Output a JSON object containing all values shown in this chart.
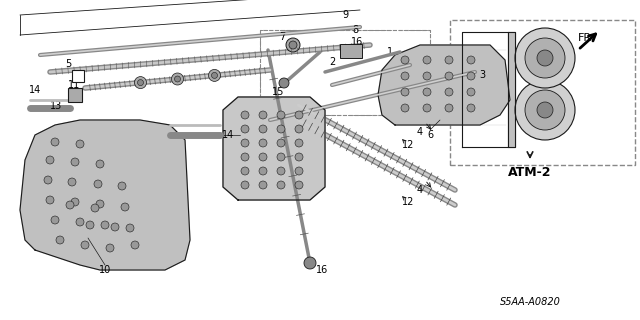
{
  "bg_color": "#ffffff",
  "lc": "#1a1a1a",
  "gray_fill": "#b8b8b8",
  "gray_dark": "#888888",
  "gray_med": "#999999",
  "part_number": "S5AA-A0820",
  "atm2_label": "ATM-2",
  "fr_label": "FR.",
  "figsize": [
    6.4,
    3.2
  ],
  "dpi": 100
}
